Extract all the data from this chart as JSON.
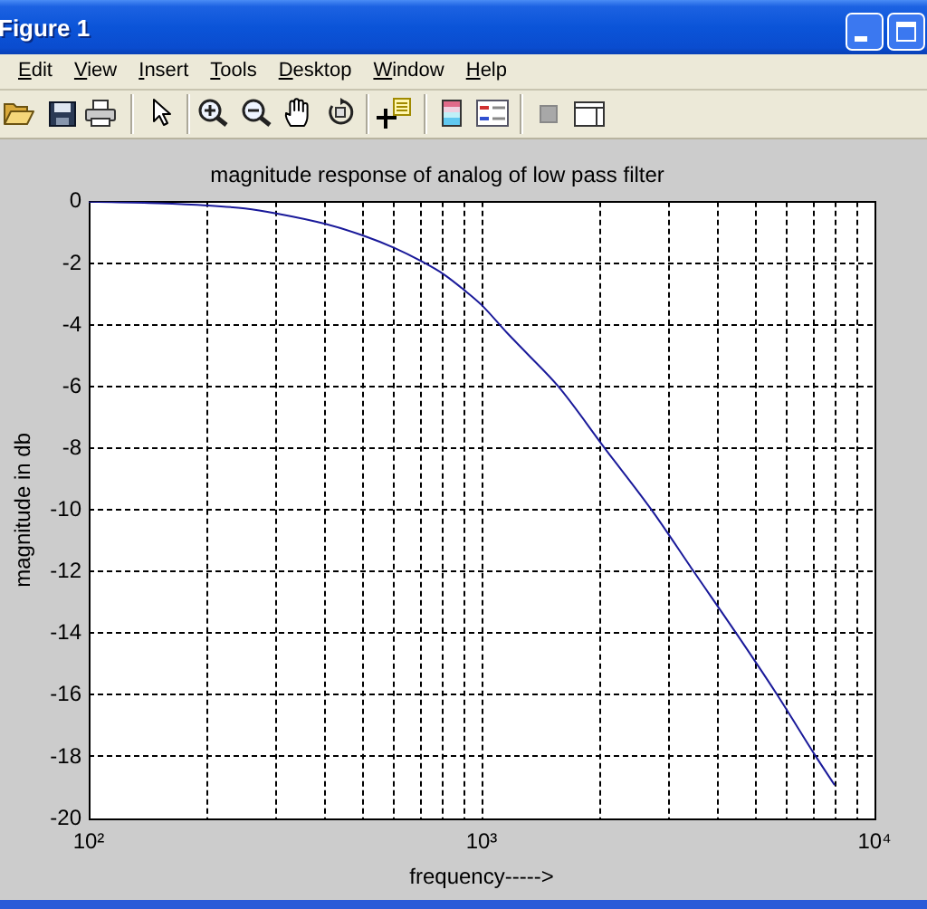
{
  "chart_data": {
    "type": "line",
    "title": "magnitude response of analog of low pass filter",
    "xlabel": "frequency----->",
    "ylabel": "magnitude in db",
    "x": [
      100,
      150,
      200,
      250,
      300,
      400,
      500,
      600,
      700,
      800,
      900,
      1000,
      1160,
      1300,
      1570,
      2060,
      2710,
      3470,
      4450,
      5660,
      7100,
      7900
    ],
    "values": [
      0,
      -0.05,
      -0.12,
      -0.22,
      -0.38,
      -0.72,
      -1.1,
      -1.5,
      -1.92,
      -2.35,
      -2.85,
      -3.35,
      -4.25,
      -4.9,
      -6,
      -8,
      -10,
      -12,
      -14,
      -16,
      -18,
      -18.9
    ],
    "color": "#1a1a9a",
    "xlim": [
      100,
      10000
    ],
    "xticks": [
      {
        "value": 100,
        "label": "10²"
      },
      {
        "value": 200,
        "label": null
      },
      {
        "value": 300,
        "label": null
      },
      {
        "value": 400,
        "label": null
      },
      {
        "value": 500,
        "label": null
      },
      {
        "value": 600,
        "label": null
      },
      {
        "value": 700,
        "label": null
      },
      {
        "value": 800,
        "label": null
      },
      {
        "value": 900,
        "label": null
      },
      {
        "value": 1000,
        "label": "10³"
      },
      {
        "value": 2000,
        "label": null
      },
      {
        "value": 3000,
        "label": null
      },
      {
        "value": 4000,
        "label": null
      },
      {
        "value": 5000,
        "label": null
      },
      {
        "value": 6000,
        "label": null
      },
      {
        "value": 7000,
        "label": null
      },
      {
        "value": 8000,
        "label": null
      },
      {
        "value": 9000,
        "label": null
      },
      {
        "value": 10000,
        "label": "10⁴"
      }
    ],
    "ylim": [
      -20,
      0
    ],
    "yticks": [
      -20,
      -18,
      -16,
      -14,
      -12,
      -10,
      -8,
      -6,
      -4,
      -2,
      0
    ],
    "log": "x",
    "grid": true,
    "annotations": [
      "Figure 1",
      "Edit",
      "View",
      "Insert",
      "Tools",
      "Desktop",
      "Window",
      "Help"
    ]
  }
}
